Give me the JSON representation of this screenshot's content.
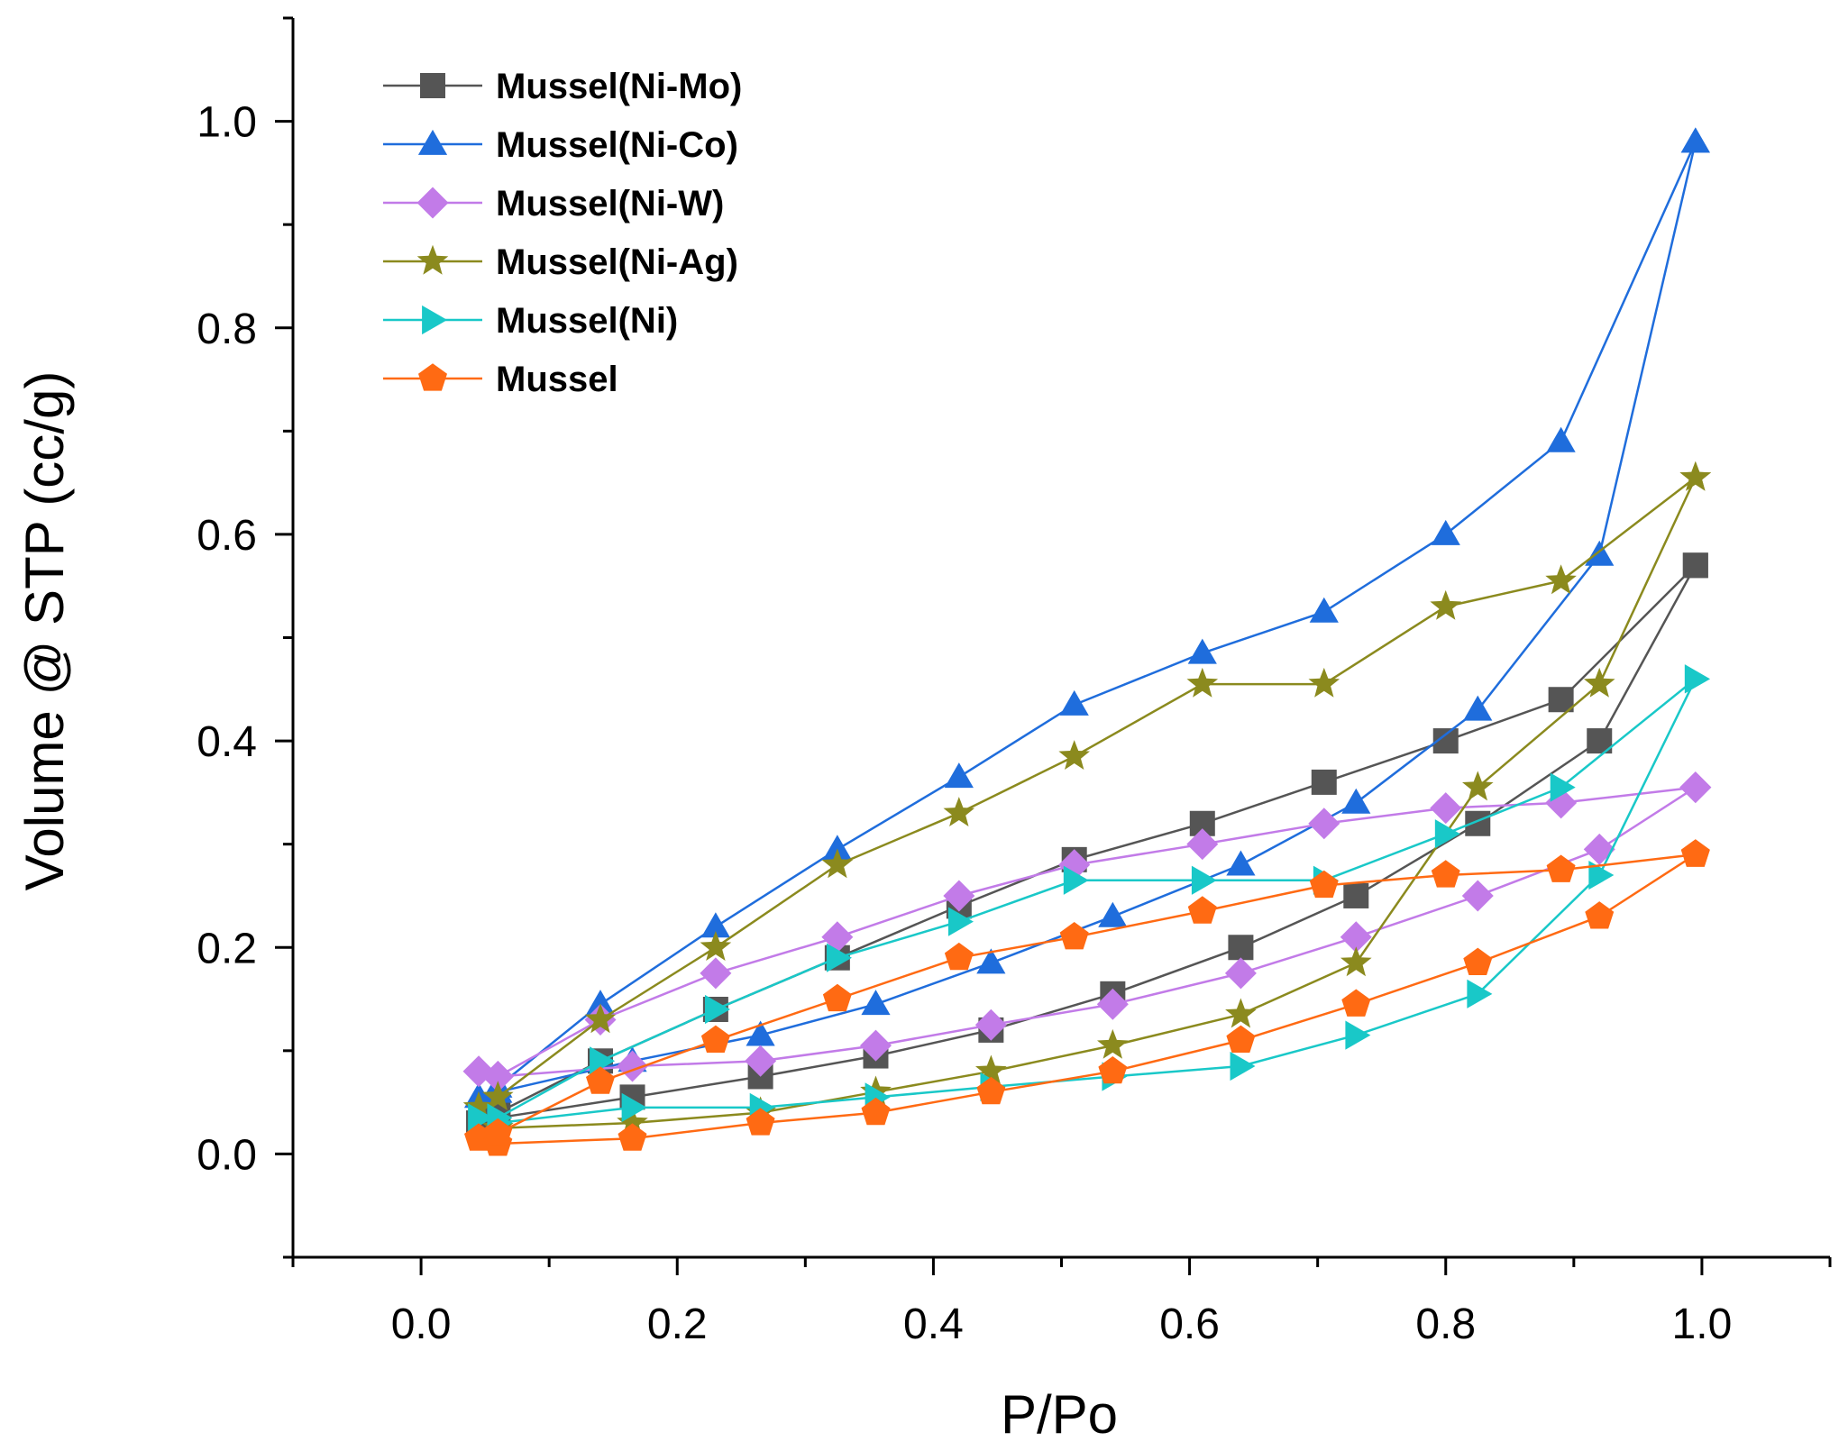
{
  "chart_data": {
    "type": "line",
    "xlabel": "P/Po",
    "ylabel": "Volume @ STP (cc/g)",
    "xlim": [
      -0.1,
      1.1
    ],
    "ylim": [
      -0.1,
      1.1
    ],
    "x_ticks": [
      "0.0",
      "0.2",
      "0.4",
      "0.6",
      "0.8",
      "1.0"
    ],
    "y_ticks": [
      "0.0",
      "0.2",
      "0.4",
      "0.6",
      "0.8",
      "1.0"
    ],
    "grid": false,
    "legend_position": "top-left",
    "series": [
      {
        "name": "Mussel(Ni-Mo)",
        "color": "#555555",
        "marker": "square",
        "adsorption": [
          [
            0.045,
            0.03
          ],
          [
            0.06,
            0.035
          ],
          [
            0.165,
            0.055
          ],
          [
            0.265,
            0.075
          ],
          [
            0.355,
            0.095
          ],
          [
            0.445,
            0.12
          ],
          [
            0.54,
            0.155
          ],
          [
            0.64,
            0.2
          ],
          [
            0.73,
            0.25
          ],
          [
            0.825,
            0.32
          ],
          [
            0.92,
            0.4
          ],
          [
            0.995,
            0.57
          ]
        ],
        "desorption": [
          [
            0.995,
            0.57
          ],
          [
            0.89,
            0.44
          ],
          [
            0.8,
            0.4
          ],
          [
            0.705,
            0.36
          ],
          [
            0.61,
            0.32
          ],
          [
            0.51,
            0.285
          ],
          [
            0.42,
            0.24
          ],
          [
            0.325,
            0.19
          ],
          [
            0.23,
            0.14
          ],
          [
            0.14,
            0.09
          ],
          [
            0.06,
            0.04
          ]
        ]
      },
      {
        "name": "Mussel(Ni-Co)",
        "color": "#1f6ddc",
        "marker": "triangle-up",
        "adsorption": [
          [
            0.045,
            0.055
          ],
          [
            0.06,
            0.06
          ],
          [
            0.165,
            0.09
          ],
          [
            0.265,
            0.115
          ],
          [
            0.355,
            0.145
          ],
          [
            0.445,
            0.185
          ],
          [
            0.54,
            0.23
          ],
          [
            0.64,
            0.28
          ],
          [
            0.73,
            0.34
          ],
          [
            0.825,
            0.43
          ],
          [
            0.92,
            0.58
          ],
          [
            0.995,
            0.98
          ]
        ],
        "desorption": [
          [
            0.995,
            0.98
          ],
          [
            0.89,
            0.69
          ],
          [
            0.8,
            0.6
          ],
          [
            0.705,
            0.525
          ],
          [
            0.61,
            0.485
          ],
          [
            0.51,
            0.435
          ],
          [
            0.42,
            0.365
          ],
          [
            0.325,
            0.295
          ],
          [
            0.23,
            0.22
          ],
          [
            0.14,
            0.145
          ],
          [
            0.06,
            0.065
          ]
        ]
      },
      {
        "name": "Mussel(Ni-W)",
        "color": "#c27be8",
        "marker": "diamond",
        "adsorption": [
          [
            0.045,
            0.08
          ],
          [
            0.06,
            0.075
          ],
          [
            0.165,
            0.085
          ],
          [
            0.265,
            0.09
          ],
          [
            0.355,
            0.105
          ],
          [
            0.445,
            0.125
          ],
          [
            0.54,
            0.145
          ],
          [
            0.64,
            0.175
          ],
          [
            0.73,
            0.21
          ],
          [
            0.825,
            0.25
          ],
          [
            0.92,
            0.295
          ],
          [
            0.995,
            0.355
          ]
        ],
        "desorption": [
          [
            0.995,
            0.355
          ],
          [
            0.89,
            0.34
          ],
          [
            0.8,
            0.335
          ],
          [
            0.705,
            0.32
          ],
          [
            0.61,
            0.3
          ],
          [
            0.51,
            0.28
          ],
          [
            0.42,
            0.25
          ],
          [
            0.325,
            0.21
          ],
          [
            0.23,
            0.175
          ],
          [
            0.14,
            0.13
          ],
          [
            0.06,
            0.075
          ]
        ]
      },
      {
        "name": "Mussel(Ni-Ag)",
        "color": "#8b8a1e",
        "marker": "star",
        "adsorption": [
          [
            0.045,
            0.045
          ],
          [
            0.06,
            0.025
          ],
          [
            0.165,
            0.03
          ],
          [
            0.265,
            0.04
          ],
          [
            0.355,
            0.06
          ],
          [
            0.445,
            0.08
          ],
          [
            0.54,
            0.105
          ],
          [
            0.64,
            0.135
          ],
          [
            0.73,
            0.185
          ],
          [
            0.825,
            0.355
          ],
          [
            0.92,
            0.455
          ],
          [
            0.995,
            0.655
          ]
        ],
        "desorption": [
          [
            0.995,
            0.655
          ],
          [
            0.89,
            0.555
          ],
          [
            0.8,
            0.53
          ],
          [
            0.705,
            0.455
          ],
          [
            0.61,
            0.455
          ],
          [
            0.51,
            0.385
          ],
          [
            0.42,
            0.33
          ],
          [
            0.325,
            0.28
          ],
          [
            0.23,
            0.2
          ],
          [
            0.14,
            0.13
          ],
          [
            0.06,
            0.055
          ]
        ]
      },
      {
        "name": "Mussel(Ni)",
        "color": "#19c8c8",
        "marker": "triangle-right",
        "adsorption": [
          [
            0.045,
            0.035
          ],
          [
            0.06,
            0.03
          ],
          [
            0.165,
            0.045
          ],
          [
            0.265,
            0.045
          ],
          [
            0.355,
            0.055
          ],
          [
            0.445,
            0.065
          ],
          [
            0.54,
            0.075
          ],
          [
            0.64,
            0.085
          ],
          [
            0.73,
            0.115
          ],
          [
            0.825,
            0.155
          ],
          [
            0.92,
            0.27
          ],
          [
            0.995,
            0.46
          ]
        ],
        "desorption": [
          [
            0.995,
            0.46
          ],
          [
            0.89,
            0.355
          ],
          [
            0.8,
            0.31
          ],
          [
            0.705,
            0.265
          ],
          [
            0.61,
            0.265
          ],
          [
            0.51,
            0.265
          ],
          [
            0.42,
            0.225
          ],
          [
            0.325,
            0.19
          ],
          [
            0.23,
            0.14
          ],
          [
            0.14,
            0.09
          ],
          [
            0.06,
            0.035
          ]
        ]
      },
      {
        "name": "Mussel",
        "color": "#ff6a13",
        "marker": "pentagon",
        "adsorption": [
          [
            0.045,
            0.015
          ],
          [
            0.06,
            0.01
          ],
          [
            0.165,
            0.015
          ],
          [
            0.265,
            0.03
          ],
          [
            0.355,
            0.04
          ],
          [
            0.445,
            0.06
          ],
          [
            0.54,
            0.08
          ],
          [
            0.64,
            0.11
          ],
          [
            0.73,
            0.145
          ],
          [
            0.825,
            0.185
          ],
          [
            0.92,
            0.23
          ],
          [
            0.995,
            0.29
          ]
        ],
        "desorption": [
          [
            0.995,
            0.29
          ],
          [
            0.89,
            0.275
          ],
          [
            0.8,
            0.27
          ],
          [
            0.705,
            0.26
          ],
          [
            0.61,
            0.235
          ],
          [
            0.51,
            0.21
          ],
          [
            0.42,
            0.19
          ],
          [
            0.325,
            0.15
          ],
          [
            0.23,
            0.11
          ],
          [
            0.14,
            0.07
          ],
          [
            0.06,
            0.02
          ]
        ]
      }
    ]
  }
}
